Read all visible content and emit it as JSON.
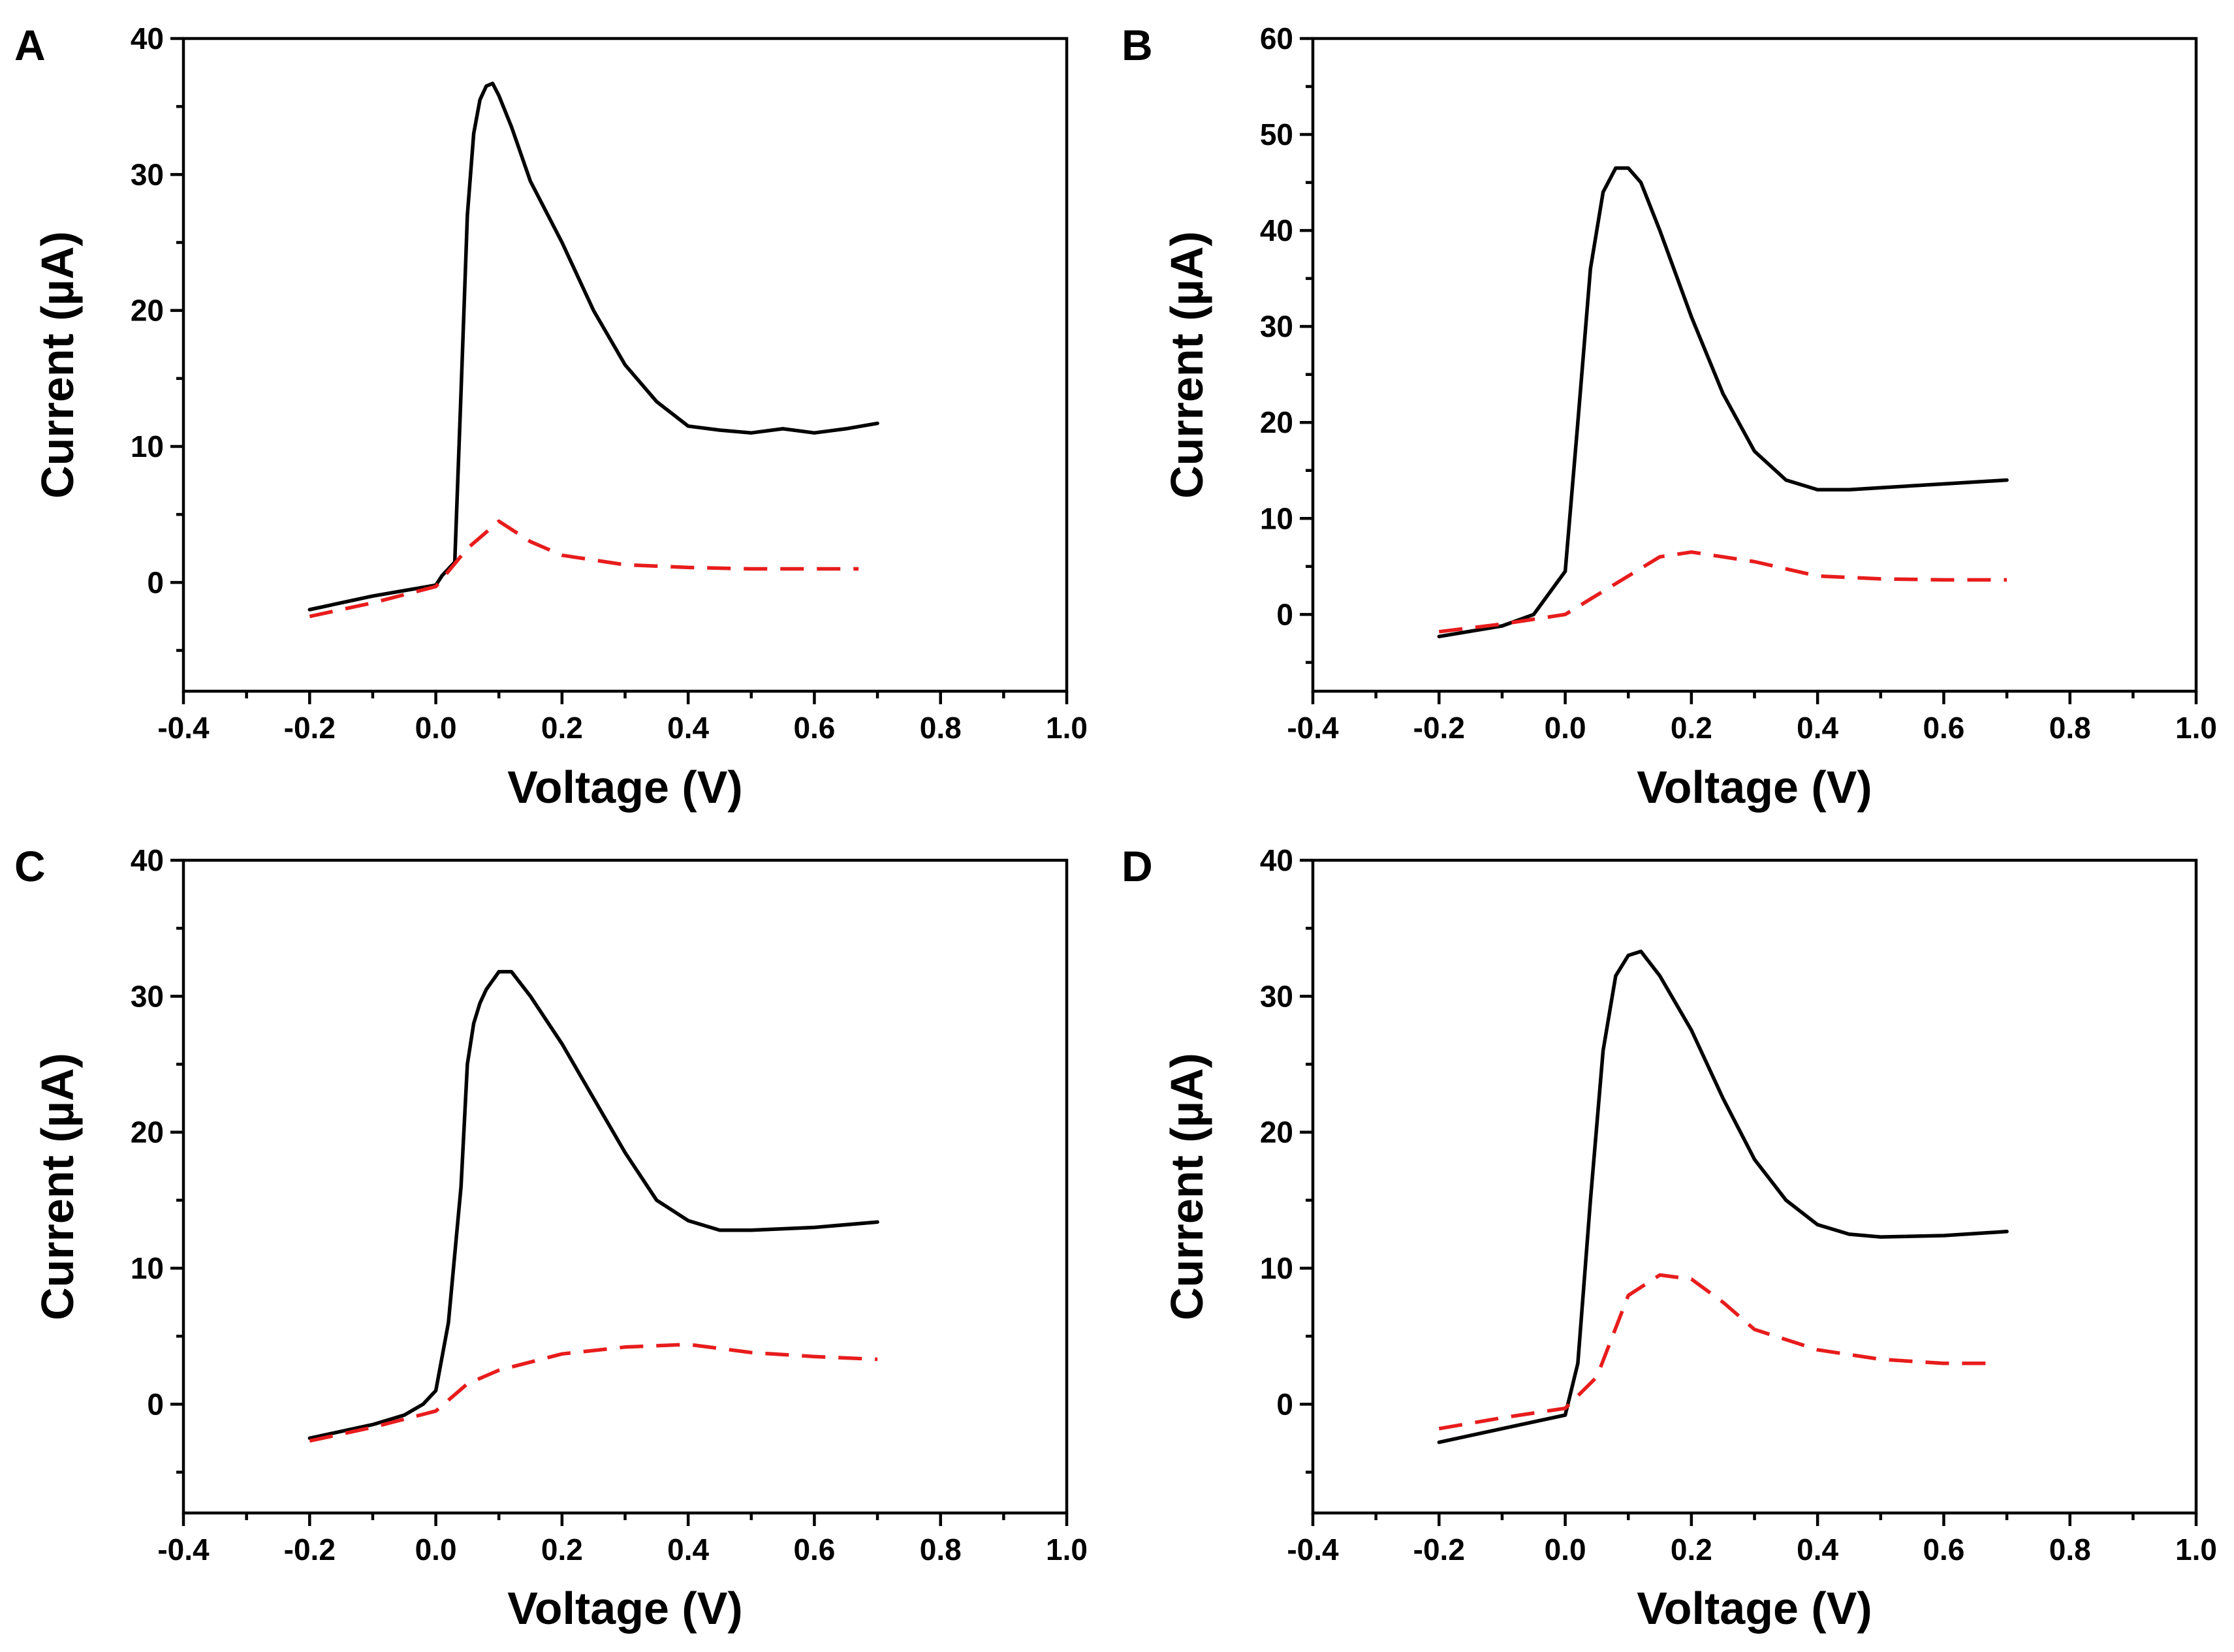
{
  "chart_data": [
    {
      "type": "line",
      "panel": "A",
      "xlabel": "Voltage (V)",
      "ylabel": "Current (µA)",
      "xlim": [
        -0.4,
        1.0
      ],
      "ylim": [
        -8,
        40
      ],
      "xticks": [
        -0.4,
        -0.2,
        0.0,
        0.2,
        0.4,
        0.6,
        0.8,
        1.0
      ],
      "xtick_labels": [
        "-0.4",
        "-0.2",
        "0.0",
        "0.2",
        "0.4",
        "0.6",
        "0.8",
        "1.0"
      ],
      "yticks": [
        0,
        10,
        20,
        30,
        40
      ],
      "ytick_labels": [
        "0",
        "10",
        "20",
        "30",
        "40"
      ],
      "series": [
        {
          "name": "solid",
          "color": "#000000",
          "style": "solid",
          "x": [
            -0.2,
            -0.1,
            0.0,
            0.01,
            0.03,
            0.04,
            0.05,
            0.06,
            0.07,
            0.08,
            0.09,
            0.1,
            0.12,
            0.15,
            0.2,
            0.25,
            0.3,
            0.35,
            0.4,
            0.45,
            0.5,
            0.55,
            0.6,
            0.65,
            0.7
          ],
          "y": [
            -2.0,
            -1.0,
            -0.2,
            0.5,
            1.5,
            14.0,
            27.0,
            33.0,
            35.5,
            36.5,
            36.7,
            35.8,
            33.5,
            29.5,
            25.0,
            20.0,
            16.0,
            13.3,
            11.5,
            11.2,
            11.0,
            11.3,
            11.0,
            11.3,
            11.7
          ]
        },
        {
          "name": "dashed",
          "color": "#e81c1c",
          "style": "dashed",
          "x": [
            -0.2,
            -0.1,
            0.0,
            0.05,
            0.1,
            0.15,
            0.2,
            0.3,
            0.4,
            0.5,
            0.6,
            0.67
          ],
          "y": [
            -2.5,
            -1.5,
            -0.3,
            2.5,
            4.5,
            3.0,
            2.0,
            1.3,
            1.1,
            1.0,
            1.0,
            1.0
          ]
        }
      ]
    },
    {
      "type": "line",
      "panel": "B",
      "xlabel": "Voltage (V)",
      "ylabel": "Current (µA)",
      "xlim": [
        -0.4,
        1.0
      ],
      "ylim": [
        -8,
        60
      ],
      "xticks": [
        -0.4,
        -0.2,
        0.0,
        0.2,
        0.4,
        0.6,
        0.8,
        1.0
      ],
      "xtick_labels": [
        "-0.4",
        "-0.2",
        "0.0",
        "0.2",
        "0.4",
        "0.6",
        "0.8",
        "1.0"
      ],
      "yticks": [
        0,
        10,
        20,
        30,
        40,
        50,
        60
      ],
      "ytick_labels": [
        "0",
        "10",
        "20",
        "30",
        "40",
        "50",
        "60"
      ],
      "series": [
        {
          "name": "solid",
          "color": "#000000",
          "style": "solid",
          "x": [
            -0.2,
            -0.1,
            -0.05,
            0.0,
            0.02,
            0.04,
            0.06,
            0.08,
            0.1,
            0.12,
            0.15,
            0.2,
            0.25,
            0.3,
            0.35,
            0.4,
            0.45,
            0.5,
            0.6,
            0.7
          ],
          "y": [
            -2.3,
            -1.2,
            0.0,
            4.5,
            20.0,
            36.0,
            44.0,
            46.5,
            46.5,
            45.0,
            40.0,
            31.0,
            23.0,
            17.0,
            14.0,
            13.0,
            13.0,
            13.2,
            13.6,
            14.0
          ]
        },
        {
          "name": "dashed",
          "color": "#e81c1c",
          "style": "dashed",
          "x": [
            -0.2,
            -0.1,
            0.0,
            0.05,
            0.1,
            0.15,
            0.2,
            0.3,
            0.4,
            0.5,
            0.6,
            0.7
          ],
          "y": [
            -1.8,
            -1.0,
            0.0,
            2.0,
            4.0,
            6.0,
            6.5,
            5.5,
            4.0,
            3.7,
            3.6,
            3.6
          ]
        }
      ]
    },
    {
      "type": "line",
      "panel": "C",
      "xlabel": "Voltage (V)",
      "ylabel": "Current (µA)",
      "xlim": [
        -0.4,
        1.0
      ],
      "ylim": [
        -8,
        40
      ],
      "xticks": [
        -0.4,
        -0.2,
        0.0,
        0.2,
        0.4,
        0.6,
        0.8,
        1.0
      ],
      "xtick_labels": [
        "-0.4",
        "-0.2",
        "0.0",
        "0.2",
        "0.4",
        "0.6",
        "0.8",
        "1.0"
      ],
      "yticks": [
        0,
        10,
        20,
        30,
        40
      ],
      "ytick_labels": [
        "0",
        "10",
        "20",
        "30",
        "40"
      ],
      "series": [
        {
          "name": "solid",
          "color": "#000000",
          "style": "solid",
          "x": [
            -0.2,
            -0.1,
            -0.05,
            -0.02,
            0.0,
            0.02,
            0.04,
            0.05,
            0.06,
            0.07,
            0.08,
            0.1,
            0.12,
            0.15,
            0.2,
            0.25,
            0.3,
            0.35,
            0.4,
            0.45,
            0.5,
            0.6,
            0.7
          ],
          "y": [
            -2.5,
            -1.5,
            -0.8,
            0.0,
            1.0,
            6.0,
            16.0,
            25.0,
            28.0,
            29.5,
            30.5,
            31.8,
            31.8,
            30.0,
            26.5,
            22.5,
            18.5,
            15.0,
            13.5,
            12.8,
            12.8,
            13.0,
            13.4
          ]
        },
        {
          "name": "dashed",
          "color": "#e81c1c",
          "style": "dashed",
          "x": [
            -0.2,
            -0.1,
            0.0,
            0.05,
            0.1,
            0.2,
            0.3,
            0.4,
            0.5,
            0.6,
            0.7
          ],
          "y": [
            -2.7,
            -1.7,
            -0.5,
            1.5,
            2.5,
            3.7,
            4.2,
            4.4,
            3.8,
            3.5,
            3.3
          ]
        }
      ]
    },
    {
      "type": "line",
      "panel": "D",
      "xlabel": "Voltage (V)",
      "ylabel": "Current (µA)",
      "xlim": [
        -0.4,
        1.0
      ],
      "ylim": [
        -8,
        40
      ],
      "xticks": [
        -0.4,
        -0.2,
        0.0,
        0.2,
        0.4,
        0.6,
        0.8,
        1.0
      ],
      "xtick_labels": [
        "-0.4",
        "-0.2",
        "0.0",
        "0.2",
        "0.4",
        "0.6",
        "0.8",
        "1.0"
      ],
      "yticks": [
        0,
        10,
        20,
        30,
        40
      ],
      "ytick_labels": [
        "0",
        "10",
        "20",
        "30",
        "40"
      ],
      "series": [
        {
          "name": "solid",
          "color": "#000000",
          "style": "solid",
          "x": [
            -0.2,
            -0.1,
            0.0,
            0.02,
            0.04,
            0.06,
            0.08,
            0.1,
            0.12,
            0.15,
            0.2,
            0.25,
            0.3,
            0.35,
            0.4,
            0.45,
            0.5,
            0.6,
            0.7
          ],
          "y": [
            -2.8,
            -1.8,
            -0.8,
            3.0,
            15.0,
            26.0,
            31.5,
            33.0,
            33.3,
            31.5,
            27.5,
            22.5,
            18.0,
            15.0,
            13.2,
            12.5,
            12.3,
            12.4,
            12.7
          ]
        },
        {
          "name": "dashed",
          "color": "#e81c1c",
          "style": "dashed",
          "x": [
            -0.2,
            -0.1,
            0.0,
            0.05,
            0.1,
            0.15,
            0.2,
            0.25,
            0.3,
            0.4,
            0.5,
            0.6,
            0.67
          ],
          "y": [
            -1.8,
            -1.0,
            -0.3,
            2.0,
            8.0,
            9.5,
            9.2,
            7.5,
            5.5,
            4.0,
            3.3,
            3.0,
            3.0
          ]
        }
      ]
    }
  ]
}
